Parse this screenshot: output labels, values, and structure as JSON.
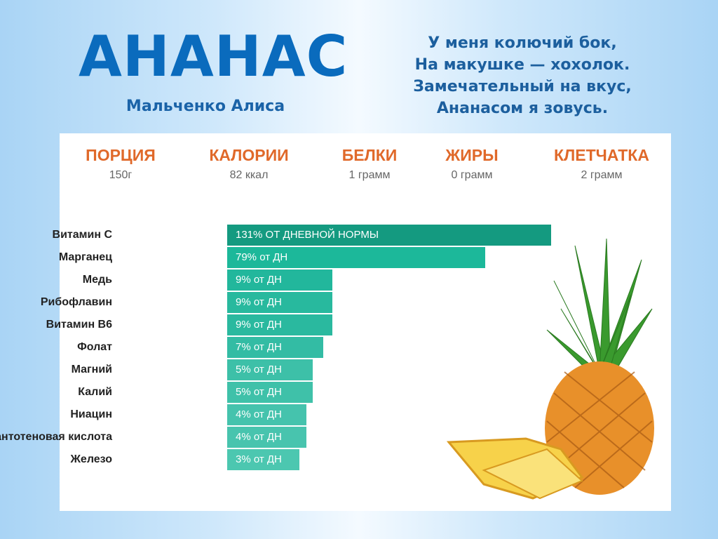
{
  "slide": {
    "title": "АНАНАС",
    "author": "Мальченко Алиса",
    "poem": [
      "У меня колючий бок,",
      "На макушке — хохолок.",
      "Замечательный на вкус,",
      "Ананасом я зовусь."
    ]
  },
  "stats": [
    {
      "label": "ПОРЦИЯ",
      "value": "150г"
    },
    {
      "label": "КАЛОРИИ",
      "value": "82 ккал"
    },
    {
      "label": "БЕЛКИ",
      "value": "1 грамм"
    },
    {
      "label": "ЖИРЫ",
      "value": "0 грамм"
    },
    {
      "label": "КЛЕТЧАТКА",
      "value": "2 грамм"
    }
  ],
  "colors": {
    "title": "#0a6bbd",
    "stat_header": "#e0692a",
    "bar_dark": "#149a80",
    "bar_light": "#4cc7b0"
  },
  "chart_data": {
    "type": "bar",
    "orientation": "horizontal",
    "categories": [
      "Витамин С",
      "Марганец",
      "Медь",
      "Рибофлавин",
      "Витамин B6",
      "Фолат",
      "Магний",
      "Калий",
      "Ниацин",
      "Пантотеновая кислота",
      "Железо"
    ],
    "values": [
      131,
      79,
      9,
      9,
      9,
      7,
      5,
      5,
      4,
      4,
      3
    ],
    "unit": "% daily value",
    "data_labels": [
      "131% ОТ ДНЕВНОЙ НОРМЫ",
      "79% от ДН",
      "9% от ДН",
      "9% от ДН",
      "9% от ДН",
      "7% от ДН",
      "5% от ДН",
      "5% от ДН",
      "4% от ДН",
      "4% от ДН",
      "3% от ДН"
    ],
    "grid": false,
    "image": "pineapple"
  }
}
